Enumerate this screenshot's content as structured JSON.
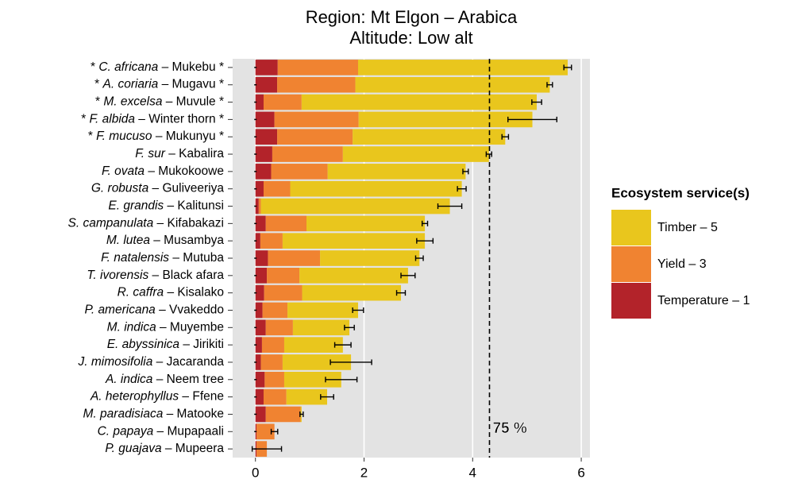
{
  "chart_data": {
    "type": "stacked-barh",
    "title": [
      "Region: Mt Elgon – Arabica",
      "Altitude: Low alt"
    ],
    "categories": [
      {
        "pre": "* ",
        "species": "C. africana",
        "post": " – Mukebu *"
      },
      {
        "pre": "* ",
        "species": "A. coriaria",
        "post": " – Mugavu *"
      },
      {
        "pre": "* ",
        "species": "M. excelsa",
        "post": " – Muvule *"
      },
      {
        "pre": "* ",
        "species": "F. albida",
        "post": " – Winter thorn *"
      },
      {
        "pre": "* ",
        "species": "F. mucuso",
        "post": " – Mukunyu *"
      },
      {
        "species": "F. sur",
        "post": " – Kabalira"
      },
      {
        "species": "F. ovata",
        "post": " – Mukokoowe"
      },
      {
        "species": "G. robusta",
        "post": " – Guliveeriya"
      },
      {
        "species": "E. grandis",
        "post": " – Kalitunsi"
      },
      {
        "species": "S. campanulata",
        "post": " – Kifabakazi"
      },
      {
        "species": "M. lutea",
        "post": " – Musambya"
      },
      {
        "species": "F. natalensis",
        "post": " – Mutuba"
      },
      {
        "species": "T. ivorensis",
        "post": " – Black afara"
      },
      {
        "species": "R. caffra",
        "post": " – Kisalako"
      },
      {
        "species": "P. americana",
        "post": " – Vvakeddo"
      },
      {
        "species": "M. indica",
        "post": " – Muyembe"
      },
      {
        "species": "E. abyssinica",
        "post": " – Jirikiti"
      },
      {
        "species": "J. mimosifolia",
        "post": " – Jacaranda"
      },
      {
        "species": "A. indica",
        "post": " – Neem tree"
      },
      {
        "species": "A. heterophyllus",
        "post": " – Ffene"
      },
      {
        "species": "M. paradisiaca",
        "post": " – Matooke"
      },
      {
        "species": "C. papaya",
        "post": " – Mupapaali"
      },
      {
        "species": "P. guajava",
        "post": " – Mupeera"
      }
    ],
    "series": [
      {
        "name": "Temperature – 1",
        "color": "#b3232a",
        "values": [
          0.41,
          0.4,
          0.15,
          0.35,
          0.4,
          0.31,
          0.29,
          0.15,
          0.06,
          0.19,
          0.09,
          0.23,
          0.21,
          0.16,
          0.13,
          0.19,
          0.12,
          0.1,
          0.17,
          0.15,
          0.19,
          0.02,
          0.02
        ]
      },
      {
        "name": "Yield – 3",
        "color": "#f08331",
        "values": [
          1.48,
          1.44,
          0.7,
          1.55,
          1.39,
          1.3,
          1.04,
          0.49,
          0.04,
          0.75,
          0.41,
          0.96,
          0.6,
          0.7,
          0.46,
          0.5,
          0.41,
          0.4,
          0.36,
          0.42,
          0.64,
          0.33,
          0.19
        ]
      },
      {
        "name": "Timber – 5",
        "color": "#e9c61d",
        "values": [
          3.86,
          3.58,
          4.33,
          3.2,
          2.81,
          2.69,
          2.54,
          3.16,
          3.48,
          2.18,
          2.62,
          1.83,
          2.0,
          1.82,
          1.3,
          1.04,
          1.08,
          1.26,
          1.05,
          0.75,
          0.02,
          0,
          0
        ]
      }
    ],
    "errors": [
      0.07,
      0.05,
      0.09,
      0.45,
      0.06,
      0.05,
      0.05,
      0.08,
      0.22,
      0.05,
      0.15,
      0.07,
      0.13,
      0.08,
      0.1,
      0.09,
      0.15,
      0.38,
      0.29,
      0.12,
      0.03,
      0.06,
      0.27
    ],
    "reference_line": {
      "value": 4.31,
      "label": "75 %"
    },
    "legend_title": "Ecosystem service(s)",
    "legend": "right",
    "xlim": [
      -0.42,
      6.16
    ],
    "xticks": [
      0,
      2,
      4,
      6
    ],
    "grid": true
  }
}
